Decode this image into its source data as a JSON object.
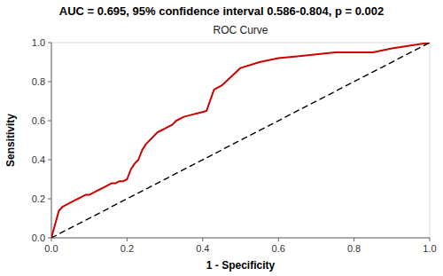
{
  "chart_data": {
    "type": "line",
    "title": "AUC = 0.695, 95% confidence interval 0.586-0.804, p = 0.002",
    "subtitle": "ROC Curve",
    "x_label": "1 - Specificity",
    "y_label": "Sensitivity",
    "series": [
      {
        "color": "#cc0000",
        "line_style": "solid",
        "x": [
          0.0,
          0.01,
          0.02,
          0.03,
          0.04,
          0.05,
          0.06,
          0.07,
          0.08,
          0.09,
          0.1,
          0.11,
          0.12,
          0.13,
          0.14,
          0.15,
          0.16,
          0.17,
          0.18,
          0.19,
          0.2,
          0.21,
          0.22,
          0.23,
          0.24,
          0.25,
          0.26,
          0.27,
          0.28,
          0.29,
          0.3,
          0.31,
          0.32,
          0.33,
          0.35,
          0.37,
          0.39,
          0.41,
          0.43,
          0.45,
          0.5,
          0.55,
          0.6,
          0.65,
          0.7,
          0.75,
          0.8,
          0.85,
          0.9,
          1.0
        ],
        "values": [
          0.0,
          0.07,
          0.14,
          0.16,
          0.17,
          0.18,
          0.19,
          0.2,
          0.21,
          0.22,
          0.22,
          0.23,
          0.24,
          0.25,
          0.26,
          0.27,
          0.28,
          0.28,
          0.29,
          0.29,
          0.3,
          0.35,
          0.38,
          0.4,
          0.45,
          0.48,
          0.5,
          0.52,
          0.54,
          0.55,
          0.56,
          0.57,
          0.58,
          0.6,
          0.62,
          0.63,
          0.64,
          0.65,
          0.76,
          0.78,
          0.87,
          0.9,
          0.92,
          0.93,
          0.94,
          0.95,
          0.95,
          0.95,
          0.97,
          1.0
        ]
      },
      {
        "color": "#000000",
        "line_style": "dashed",
        "x": [
          0,
          1
        ],
        "values": [
          0,
          1
        ]
      }
    ],
    "xlim": [
      0.0,
      1.0
    ],
    "ylim": [
      0.0,
      1.0
    ],
    "xticks": [
      {
        "value": 0.0,
        "label": "0.0"
      },
      0.2,
      0.4,
      0.6,
      0.8,
      {
        "value": 1.0,
        "label": "1.0"
      }
    ],
    "yticks": [
      {
        "value": 0.0,
        "label": "0.0"
      },
      0.2,
      0.4,
      0.6,
      0.8,
      {
        "value": 1.0,
        "label": "1.0"
      }
    ]
  }
}
